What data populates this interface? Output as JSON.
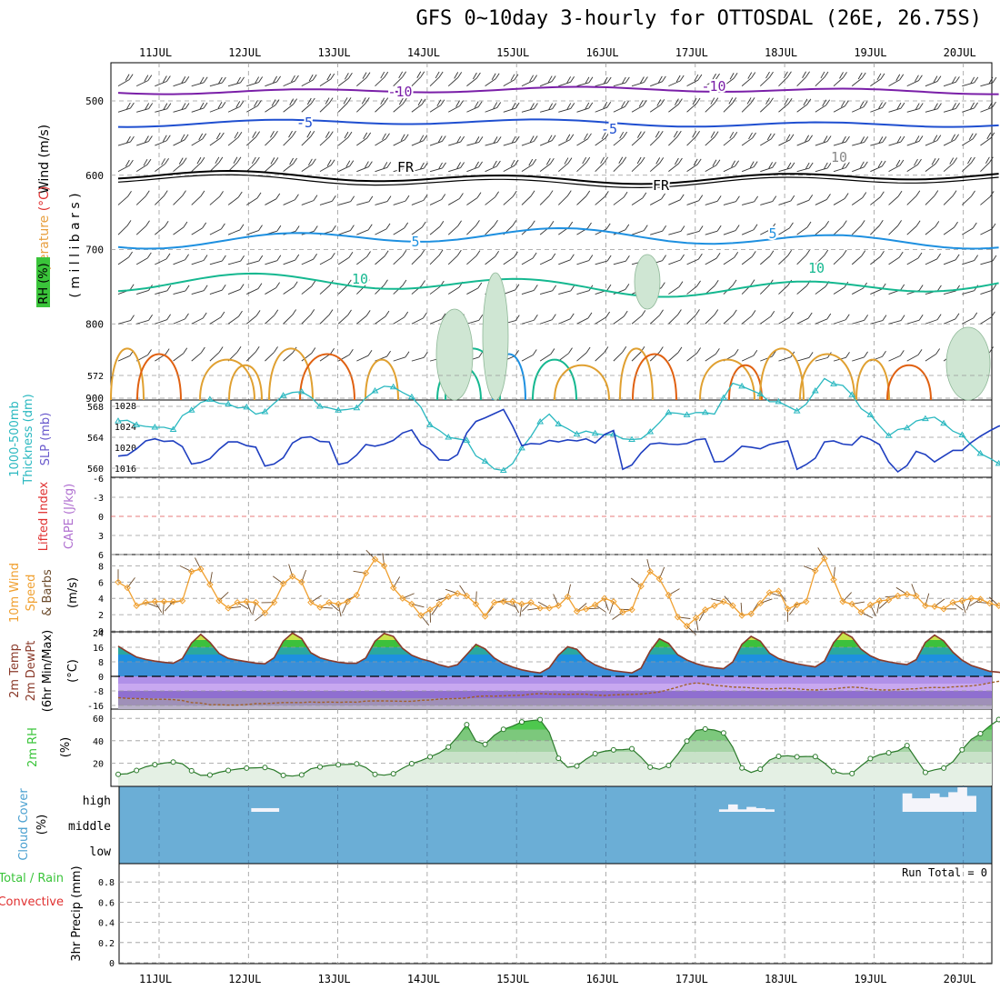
{
  "title": "GFS 0~10day 3-hourly for OTTOSDAL (26E, 26.75S)",
  "dates": [
    "11JUL",
    "12JUL",
    "13JUL",
    "14JUL",
    "15JUL",
    "16JUL",
    "17JUL",
    "18JUL",
    "19JUL",
    "20JUL"
  ],
  "colors": {
    "grid": "#999999",
    "frame": "#000000",
    "purple": "#7a1fa8",
    "blue": "#1f4fd0",
    "lightblue": "#1e90e0",
    "teal": "#15b890",
    "orange": "#e0a030",
    "darkorange": "#e06010",
    "cyan": "#2ab8c0",
    "navy": "#1f3fc0",
    "cloud": "#6baed6",
    "rh": "#3ac43a"
  },
  "panels": {
    "upper": {
      "labels": {
        "wind": "Wind (m/s)",
        "temperature": "Temperature",
        "temp_unit": "(°C)",
        "rh": "RH (%)",
        "millibars": "( m i l l i b a r s )"
      },
      "pressure_ticks": [
        "500",
        "600",
        "700",
        "800",
        "900"
      ],
      "contour_labels": {
        "m10_a": "-10",
        "m10_b": "-10",
        "m5_a": "-5",
        "m5_b": "-5",
        "fr_a": "FR",
        "fr_b": "FR",
        "p5_a": "5",
        "p5_b": "5",
        "p10_a": "10",
        "p10_b": "10",
        "p10_c": "10"
      }
    },
    "thickness": {
      "label1": "1000-500mb",
      "label2": "Thickness (dm)",
      "label3": "SLP (mb)",
      "left_ticks": [
        "560",
        "564",
        "568",
        "572"
      ],
      "right_ticks": [
        "1016",
        "1020",
        "1024",
        "1028"
      ]
    },
    "stability": {
      "label1": "Lifted Index",
      "label2": "CAPE (J/kg)",
      "ticks": [
        "-6",
        "-3",
        "0",
        "3",
        "6"
      ]
    },
    "wind10": {
      "label1": "10m Wind",
      "label2": "Speed",
      "label3": "& Barbs",
      "unit": "(m/s)",
      "ticks": [
        "0",
        "2",
        "4",
        "6",
        "8"
      ]
    },
    "temp2m": {
      "label1": "2m Temp",
      "label2": "2m DewPt",
      "label3": "(6hr Min/Max)",
      "unit": "(°C)",
      "ticks": [
        "-16",
        "-8",
        "0",
        "8",
        "16",
        "24"
      ]
    },
    "rh2m": {
      "label": "2m RH",
      "unit": "(%)",
      "ticks": [
        "20",
        "40",
        "60"
      ]
    },
    "cloud": {
      "label": "Cloud Cover",
      "unit": "(%)",
      "levels": [
        "high",
        "middle",
        "low"
      ]
    },
    "precip": {
      "label1": "Total / Rain",
      "label2": "Convective",
      "label3": "3hr Precip (mm)",
      "ticks": [
        "0",
        "0.2",
        "0.4",
        "0.6",
        "0.8"
      ],
      "run_total": "Run Total = 0"
    }
  },
  "chart_data": [
    {
      "type": "line",
      "name": "upper_air_cross_section",
      "y_axis": "pressure (millibars)",
      "ylim": [
        900,
        450
      ],
      "x_start": "10JUL 12Z",
      "x_step_hours": 3,
      "x_end": "20JUL 09Z"
    },
    {
      "type": "line",
      "name": "thickness_slp",
      "series": [
        {
          "name": "1000-500mb Thickness (dm)",
          "values": [
            566.1,
            566.2,
            565.6,
            565.4,
            565.3,
            565.3,
            565.0,
            566.8,
            567.5,
            568.5,
            568.9,
            568.4,
            568.3,
            567.8,
            567.9,
            567.0,
            567.3,
            568.4,
            569.4,
            569.8,
            569.9,
            569.2,
            568.0,
            567.8,
            567.5,
            567.6,
            567.8,
            569.1,
            570.0,
            570.6,
            570.5,
            569.8,
            569.2,
            567.9,
            565.6,
            564.9,
            564.0,
            563.8,
            563.6,
            561.6,
            560.9,
            559.9,
            559.7,
            560.6,
            562.6,
            564.1,
            566.0,
            567.0,
            565.7,
            565.1,
            564.4,
            564.8,
            564.5,
            564.3,
            564.4,
            563.8,
            563.7,
            563.8,
            564.7,
            565.9,
            567.2,
            567.1,
            566.9,
            567.2,
            567.2,
            567.0,
            569.1,
            571.0,
            570.6,
            570.1,
            569.6,
            568.6,
            568.6,
            568.0,
            567.4,
            568.3,
            570.0,
            571.6,
            570.9,
            570.7,
            569.5,
            567.7,
            566.9,
            565.5,
            564.2,
            565.0,
            565.2,
            566.1,
            566.4,
            566.6,
            565.8,
            564.8,
            564.3,
            563.0,
            561.9,
            561.3,
            560.6,
            560.0,
            560.0
          ]
        },
        {
          "name": "SLP (mb)",
          "values": [
            1018.3,
            1018.5,
            1019.7,
            1021.2,
            1021.6,
            1021.1,
            1021.2,
            1020.1,
            1016.8,
            1017.1,
            1017.8,
            1019.6,
            1021.0,
            1021.0,
            1020.3,
            1020.0,
            1016.4,
            1016.8,
            1018.0,
            1020.8,
            1021.8,
            1022.0,
            1021.1,
            1021.0,
            1016.7,
            1017.1,
            1018.5,
            1020.5,
            1020.2,
            1020.6,
            1021.3,
            1022.7,
            1023.3,
            1020.6,
            1019.6,
            1017.6,
            1017.5,
            1018.6,
            1022.7,
            1024.9,
            1025.6,
            1026.4,
            1027.2,
            1024.0,
            1020.3,
            1020.7,
            1020.6,
            1021.3,
            1021.0,
            1021.4,
            1021.2,
            1021.6,
            1020.8,
            1022.4,
            1023.2,
            1015.8,
            1016.6,
            1018.9,
            1020.6,
            1020.8,
            1020.6,
            1020.5,
            1020.7,
            1021.4,
            1021.6,
            1017.2,
            1017.3,
            1018.6,
            1020.2,
            1020.0,
            1019.7,
            1020.5,
            1020.9,
            1021.2,
            1015.8,
            1016.7,
            1017.9,
            1021.0,
            1021.2,
            1020.6,
            1020.4,
            1022.1,
            1021.5,
            1020.5,
            1017.2,
            1015.3,
            1016.5,
            1019.2,
            1018.6,
            1017.2,
            1018.3,
            1019.4,
            1019.4,
            1020.9,
            1022.1,
            1023.1,
            1024.0,
            1024.5,
            1025.0
          ]
        }
      ]
    },
    {
      "type": "line",
      "name": "lifted_index_cape",
      "ylim": [
        6,
        -6
      ],
      "series": [
        {
          "name": "Lifted Index",
          "values": []
        },
        {
          "name": "CAPE (J/kg)",
          "values": []
        }
      ]
    },
    {
      "type": "line",
      "name": "wind_10m",
      "ylim": [
        0,
        9
      ],
      "series": [
        {
          "name": "10m Wind Speed (m/s)",
          "values": [
            6.0,
            5.3,
            3.1,
            3.5,
            3.6,
            3.6,
            3.6,
            3.7,
            7.3,
            7.6,
            5.7,
            3.7,
            2.8,
            3.5,
            3.6,
            3.5,
            2.2,
            3.5,
            5.8,
            6.7,
            6.0,
            3.5,
            2.9,
            3.5,
            3.3,
            3.6,
            4.4,
            7.1,
            8.8,
            8.0,
            5.3,
            4.0,
            3.3,
            1.9,
            2.6,
            3.3,
            4.2,
            4.6,
            4.3,
            3.3,
            1.8,
            3.5,
            3.6,
            3.6,
            3.3,
            3.5,
            2.8,
            2.8,
            3.1,
            4.2,
            2.4,
            2.7,
            3.2,
            4.0,
            3.6,
            2.3,
            2.6,
            5.5,
            7.3,
            6.4,
            4.4,
            1.7,
            0.6,
            1.6,
            2.6,
            3.1,
            3.6,
            3.1,
            1.9,
            2.1,
            3.4,
            4.7,
            4.9,
            2.7,
            3.2,
            3.6,
            7.4,
            8.9,
            6.3,
            3.6,
            3.3,
            2.3,
            3.2,
            3.7,
            3.8,
            4.3,
            4.5,
            4.3,
            3.1,
            3.0,
            2.7,
            3.5,
            3.7,
            4.0,
            3.9,
            3.4,
            3.1,
            3.1,
            3.3
          ]
        }
      ]
    },
    {
      "type": "area",
      "name": "temp_2m",
      "ylim": [
        -22,
        28
      ],
      "series": [
        {
          "name": "2m Temp (°C)",
          "values": [
            16.6,
            13.5,
            10.6,
            9.3,
            8.4,
            7.7,
            7.2,
            9.8,
            18.4,
            23.1,
            18.7,
            12.6,
            9.9,
            8.9,
            8.1,
            7.3,
            6.9,
            10.2,
            19.4,
            23.8,
            20.8,
            13.0,
            10.2,
            8.8,
            7.8,
            7.2,
            7.2,
            10.1,
            19.3,
            23.6,
            22.0,
            15.4,
            11.6,
            9.6,
            8.3,
            6.4,
            5.1,
            6.4,
            12.0,
            17.6,
            15.1,
            10.1,
            7.1,
            5.1,
            3.6,
            2.6,
            1.9,
            4.7,
            11.7,
            16.3,
            14.9,
            9.4,
            6.3,
            4.3,
            3.1,
            2.5,
            1.9,
            4.5,
            14.0,
            20.7,
            18.2,
            11.9,
            9.0,
            7.0,
            5.6,
            4.7,
            4.2,
            7.9,
            17.6,
            22.0,
            19.4,
            12.8,
            9.8,
            8.1,
            6.9,
            6.0,
            5.2,
            8.4,
            18.5,
            24.3,
            21.5,
            14.9,
            11.3,
            9.1,
            8.0,
            7.1,
            6.5,
            9.2,
            18.7,
            22.7,
            19.5,
            13.3,
            8.9,
            6.0,
            4.4,
            2.8,
            2.3,
            1.3,
            0.6
          ]
        },
        {
          "name": "2m DewPt (°C)",
          "values": [
            -11.7,
            -12.1,
            -12.2,
            -12.4,
            -12.6,
            -12.6,
            -12.8,
            -13.3,
            -14.4,
            -14.7,
            -15.6,
            -15.6,
            -15.8,
            -15.8,
            -15.5,
            -15.0,
            -15.0,
            -14.7,
            -14.4,
            -14.4,
            -14.4,
            -14.1,
            -14.3,
            -14.1,
            -14.3,
            -14.1,
            -14.2,
            -13.6,
            -13.5,
            -13.5,
            -13.6,
            -13.7,
            -13.7,
            -13.2,
            -13.0,
            -12.5,
            -12.3,
            -12.2,
            -11.9,
            -11.1,
            -10.8,
            -10.9,
            -10.7,
            -10.5,
            -10.4,
            -9.8,
            -9.5,
            -9.7,
            -9.8,
            -9.9,
            -9.8,
            -9.8,
            -10.3,
            -10.5,
            -10.2,
            -10.0,
            -9.9,
            -9.7,
            -9.2,
            -8.6,
            -7.3,
            -5.9,
            -4.4,
            -3.6,
            -4.1,
            -4.9,
            -5.3,
            -5.9,
            -6.0,
            -6.3,
            -6.7,
            -6.9,
            -6.7,
            -6.5,
            -6.9,
            -7.3,
            -7.5,
            -7.2,
            -6.9,
            -6.3,
            -5.9,
            -6.2,
            -6.9,
            -7.4,
            -7.5,
            -7.3,
            -7.0,
            -6.8,
            -6.3,
            -6.1,
            -6.2,
            -5.8,
            -5.5,
            -5.2,
            -4.6,
            -3.6,
            -2.7,
            -1.8,
            -1.3
          ]
        }
      ]
    },
    {
      "type": "area",
      "name": "rh_2m",
      "ylim": [
        0,
        67
      ],
      "series": [
        {
          "name": "2m RH (%)",
          "values": [
            10.0,
            10.5,
            13.4,
            16.7,
            18.6,
            20.0,
            20.9,
            19.4,
            13.1,
            9.0,
            9.3,
            11.8,
            13.4,
            14.6,
            15.5,
            15.8,
            16.1,
            13.7,
            9.0,
            8.4,
            9.5,
            14.9,
            16.6,
            18.0,
            18.5,
            18.8,
            19.3,
            16.0,
            10.0,
            9.2,
            10.5,
            15.4,
            19.5,
            22.2,
            25.6,
            29.1,
            34.4,
            43.5,
            54.4,
            39.6,
            36.8,
            44.8,
            50.2,
            53.1,
            56.8,
            58.0,
            58.8,
            47.5,
            24.3,
            16.3,
            17.4,
            23.5,
            28.5,
            30.6,
            31.8,
            32.0,
            32.8,
            25.3,
            16.4,
            14.4,
            17.9,
            27.9,
            39.6,
            49.1,
            50.5,
            49.6,
            47.0,
            34.2,
            15.6,
            11.6,
            14.5,
            22.7,
            26.0,
            26.6,
            25.6,
            25.9,
            25.8,
            20.0,
            12.6,
            10.4,
            10.7,
            17.6,
            24.1,
            27.6,
            29.2,
            30.9,
            35.7,
            23.6,
            11.7,
            14.0,
            15.5,
            21.2,
            31.9,
            41.2,
            46.3,
            53.1,
            58.9,
            65.5,
            61.0
          ]
        }
      ]
    },
    {
      "type": "bar",
      "name": "cloud_cover",
      "ylim": [
        0,
        100
      ],
      "series": [
        {
          "name": "high cloud cover (%)",
          "values": [
            0,
            0,
            0,
            0,
            0,
            0,
            0,
            0,
            0,
            0,
            0,
            0,
            0,
            0,
            0,
            15,
            15,
            15,
            0,
            0,
            0,
            0,
            0,
            0,
            0,
            0,
            0,
            0,
            0,
            0,
            0,
            0,
            0,
            0,
            0,
            0,
            0,
            0,
            0,
            0,
            0,
            0,
            0,
            0,
            0,
            0,
            0,
            0,
            0,
            0,
            0,
            0,
            0,
            0,
            0,
            0,
            0,
            0,
            0,
            0,
            0,
            0,
            0,
            0,
            0,
            0,
            10,
            30,
            10,
            20,
            15,
            10,
            0,
            0,
            0,
            0,
            0,
            0,
            0,
            0,
            0,
            0,
            0,
            0,
            0,
            0,
            75,
            55,
            55,
            75,
            60,
            80,
            100,
            65,
            0,
            0,
            0,
            0,
            20
          ]
        }
      ]
    },
    {
      "type": "bar",
      "name": "precip_3hr",
      "ylim": [
        0,
        0.95
      ],
      "series": [
        {
          "name": "Total / Rain (mm)",
          "values": []
        },
        {
          "name": "Convective (mm)",
          "values": []
        }
      ]
    }
  ]
}
